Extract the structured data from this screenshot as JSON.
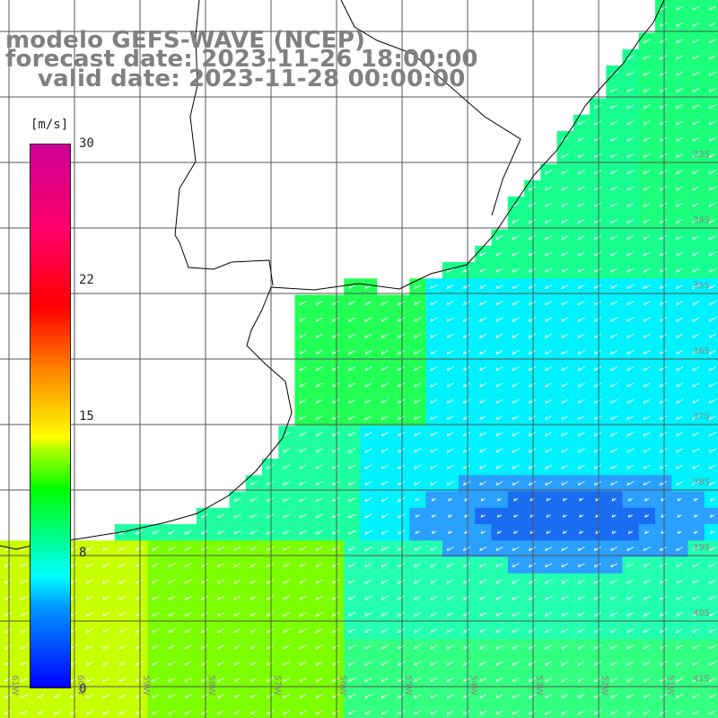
{
  "title": {
    "line1": "modelo GEFS-WAVE (NCEP)",
    "line2": "forecast date: 2023-11-26 18:00:00",
    "line3": "valid date: 2023-11-28 00:00:00"
  },
  "colorbar": {
    "unit": "[m/s]",
    "ticks": [
      "30",
      "22",
      "15",
      "8",
      "0"
    ],
    "colors": [
      "#0000ff",
      "#0099ff",
      "#00ffff",
      "#00ff00",
      "#ffff00",
      "#ff8800",
      "#ff0000",
      "#cc0099"
    ]
  },
  "lon_labels": [
    "61W",
    "60W",
    "59W",
    "58W",
    "57W",
    "56W",
    "55W",
    "54W",
    "53W",
    "52W",
    "51W"
  ],
  "lat_labels": [
    "33S",
    "34S",
    "35S",
    "36S",
    "37S",
    "38S",
    "39S",
    "40S",
    "41S"
  ],
  "colors": {
    "land": "#ffffff",
    "grid": "#555555",
    "coast": "#000000",
    "arrows": "#ffffff",
    "title": "#808080"
  }
}
